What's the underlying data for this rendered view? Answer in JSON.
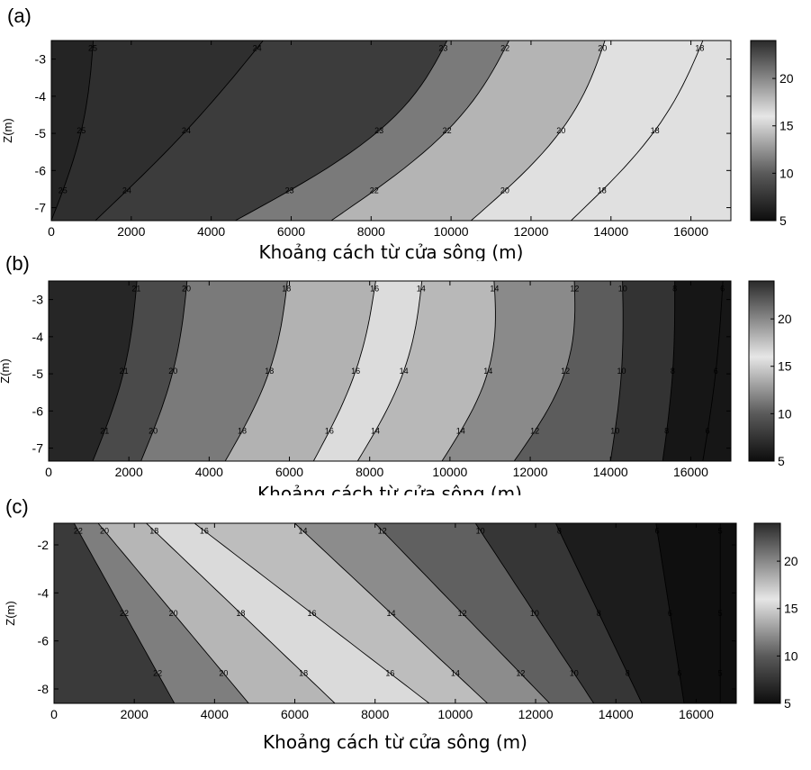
{
  "colorbar": {
    "range": [
      5,
      24
    ],
    "ticks": [
      5,
      10,
      15,
      20
    ],
    "stops": [
      {
        "value": 5,
        "color": "#0d0d0d"
      },
      {
        "value": 10,
        "color": "#5a5a5a"
      },
      {
        "value": 16,
        "color": "#e6e6e6"
      },
      {
        "value": 24,
        "color": "#2a2a2a"
      }
    ]
  },
  "chart_data": [
    {
      "type": "heatmap",
      "panel_label": "(a)",
      "xlabel": "Khoảng cách từ cửa sông (m)",
      "ylabel": "Z(m)",
      "xlim": [
        0,
        17000
      ],
      "ylim": [
        -7.35,
        -2.5
      ],
      "xticks": [
        0,
        2000,
        4000,
        6000,
        8000,
        10000,
        12000,
        14000,
        16000
      ],
      "yticks": [
        -3,
        -4,
        -5,
        -6,
        -7
      ],
      "bands": [
        {
          "level": 24,
          "color": "#242424"
        },
        {
          "level": 23,
          "color": "#2f2f2f"
        },
        {
          "level": 22,
          "color": "#3c3c3c"
        },
        {
          "level": 20,
          "color": "#7a7a7a"
        },
        {
          "level": 18,
          "color": "#b4b4b4"
        },
        {
          "level": 16,
          "color": "#e0e0e0"
        }
      ],
      "contours": [
        {
          "label": "25",
          "x": [
            0,
            1050
          ],
          "y": [
            -7.35,
            -2.5
          ],
          "bend": 900
        },
        {
          "label": "24",
          "x": [
            1100,
            5300
          ],
          "y": [
            -7.35,
            -2.5
          ],
          "bend": 700
        },
        {
          "label": "23",
          "x": [
            4600,
            9900
          ],
          "y": [
            -7.35,
            -2.5
          ],
          "bend": 3800
        },
        {
          "label": "22",
          "x": [
            7000,
            11450
          ],
          "y": [
            -7.35,
            -2.5
          ],
          "bend": 2700
        },
        {
          "label": "20",
          "x": [
            10500,
            13850
          ],
          "y": [
            -7.35,
            -2.5
          ],
          "bend": 2300
        },
        {
          "label": "18",
          "x": [
            13000,
            16300
          ],
          "y": [
            -7.35,
            -2.5
          ],
          "bend": 1800
        }
      ]
    },
    {
      "type": "heatmap",
      "panel_label": "(b)",
      "xlabel": "Khoảng cách từ cửa sông (m)",
      "ylabel": "Z(m)",
      "xlim": [
        0,
        17000
      ],
      "ylim": [
        -7.35,
        -2.5
      ],
      "xticks": [
        0,
        2000,
        4000,
        6000,
        8000,
        10000,
        12000,
        14000,
        16000
      ],
      "yticks": [
        -3,
        -4,
        -5,
        -6,
        -7
      ],
      "bands": [
        {
          "level": 22,
          "color": "#262626"
        },
        {
          "level": 21,
          "color": "#4a4a4a"
        },
        {
          "level": 20,
          "color": "#7a7a7a"
        },
        {
          "level": 18,
          "color": "#b2b2b2"
        },
        {
          "level": 16,
          "color": "#dcdcdc"
        },
        {
          "level": 14,
          "color": "#b8b8b8"
        },
        {
          "level": 12,
          "color": "#8a8a8a"
        },
        {
          "level": 10,
          "color": "#5c5c5c"
        },
        {
          "level": 8,
          "color": "#333333"
        },
        {
          "level": 6,
          "color": "#161616"
        }
      ],
      "contours": [
        {
          "label": "21",
          "x": [
            1100,
            2200
          ],
          "y": [
            -7.35,
            -2.5
          ],
          "bend": 900
        },
        {
          "label": "20",
          "x": [
            2300,
            3450
          ],
          "y": [
            -7.35,
            -2.5
          ],
          "bend": 900
        },
        {
          "label": "18",
          "x": [
            4400,
            5950
          ],
          "y": [
            -7.35,
            -2.5
          ],
          "bend": 1300
        },
        {
          "label": "16",
          "x": [
            6600,
            8150
          ],
          "y": [
            -7.35,
            -2.5
          ],
          "bend": 1100
        },
        {
          "label": "14",
          "x": [
            7700,
            9300
          ],
          "y": [
            -7.35,
            -2.5
          ],
          "bend": 1400
        },
        {
          "label": "14",
          "x": [
            9800,
            11100
          ],
          "y": [
            -7.35,
            -2.5
          ],
          "bend": 2000
        },
        {
          "label": "12",
          "x": [
            11600,
            13100
          ],
          "y": [
            -7.35,
            -2.5
          ],
          "bend": 2100
        },
        {
          "label": "10",
          "x": [
            14000,
            14300
          ],
          "y": [
            -7.35,
            -2.5
          ],
          "bend": 500
        },
        {
          "label": "8",
          "x": [
            15300,
            15600
          ],
          "y": [
            -7.35,
            -2.5
          ],
          "bend": 400
        },
        {
          "label": "6",
          "x": [
            16300,
            16800
          ],
          "y": [
            -7.35,
            -2.5
          ],
          "bend": 300
        }
      ]
    },
    {
      "type": "heatmap",
      "panel_label": "(c)",
      "xlabel": "Khoảng cách từ cửa sông (m)",
      "ylabel": "Z(m)",
      "xlim": [
        0,
        17000
      ],
      "ylim": [
        -8.6,
        -1.1
      ],
      "xticks": [
        0,
        2000,
        4000,
        6000,
        8000,
        10000,
        12000,
        14000,
        16000
      ],
      "yticks": [
        -2,
        -4,
        -6,
        -8
      ],
      "bands": [
        {
          "level": 22,
          "color": "#3a3a3a"
        },
        {
          "level": 20,
          "color": "#7e7e7e"
        },
        {
          "level": 18,
          "color": "#b6b6b6"
        },
        {
          "level": 16,
          "color": "#dadada"
        },
        {
          "level": 14,
          "color": "#bdbdbd"
        },
        {
          "level": 12,
          "color": "#8c8c8c"
        },
        {
          "level": 10,
          "color": "#606060"
        },
        {
          "level": 8,
          "color": "#363636"
        },
        {
          "level": 6,
          "color": "#1c1c1c"
        },
        {
          "level": 5,
          "color": "#0f0f0f"
        }
      ],
      "contours": [
        {
          "label": "22",
          "x": [
            3000,
            500
          ],
          "y": [
            -8.6,
            -1.1
          ],
          "bend": 0
        },
        {
          "label": "20",
          "x": [
            4850,
            1100
          ],
          "y": [
            -8.6,
            -1.1
          ],
          "bend": 0
        },
        {
          "label": "18",
          "x": [
            7000,
            2300
          ],
          "y": [
            -8.6,
            -1.1
          ],
          "bend": 0
        },
        {
          "label": "16",
          "x": [
            9350,
            3500
          ],
          "y": [
            -8.6,
            -1.1
          ],
          "bend": 0
        },
        {
          "label": "14",
          "x": [
            10800,
            6000
          ],
          "y": [
            -8.6,
            -1.1
          ],
          "bend": 0
        },
        {
          "label": "12",
          "x": [
            12350,
            8000
          ],
          "y": [
            -8.6,
            -1.1
          ],
          "bend": 0
        },
        {
          "label": "10",
          "x": [
            13450,
            10500
          ],
          "y": [
            -8.6,
            -1.1
          ],
          "bend": 0
        },
        {
          "label": "8",
          "x": [
            14650,
            12500
          ],
          "y": [
            -8.6,
            -1.1
          ],
          "bend": 0
        },
        {
          "label": "6",
          "x": [
            15700,
            15000
          ],
          "y": [
            -8.6,
            -1.1
          ],
          "bend": 0
        },
        {
          "label": "5",
          "x": [
            16600,
            16600
          ],
          "y": [
            -8.6,
            -1.1
          ],
          "bend": 0
        }
      ]
    }
  ]
}
